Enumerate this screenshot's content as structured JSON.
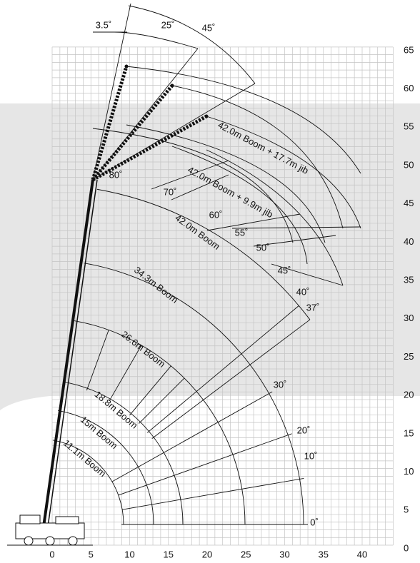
{
  "x_axis": {
    "labels": [
      0,
      5,
      10,
      15,
      20,
      25,
      30,
      35,
      40
    ]
  },
  "y_axis": {
    "labels": [
      0,
      5,
      10,
      15,
      20,
      25,
      30,
      35,
      40,
      45,
      50,
      55,
      60,
      65
    ]
  },
  "booms": [
    {
      "label": "11.1m Boom"
    },
    {
      "label": "15m Boom"
    },
    {
      "label": "18.8m Boom"
    },
    {
      "label": "26.6m Boom"
    },
    {
      "label": "34.3m Boom"
    },
    {
      "label": "42.0m Boom"
    },
    {
      "label": "42.0m Boom + 9.9m jib"
    },
    {
      "label": "42.0m Boom + 17.7m jib"
    }
  ],
  "boom_angles": [
    "0˚",
    "10˚",
    "20˚",
    "30˚",
    "37˚",
    "40˚",
    "45˚",
    "50˚",
    "55˚",
    "60˚",
    "70˚",
    "80˚"
  ],
  "jib_offsets": [
    "3.5˚",
    "25˚",
    "45˚"
  ]
}
